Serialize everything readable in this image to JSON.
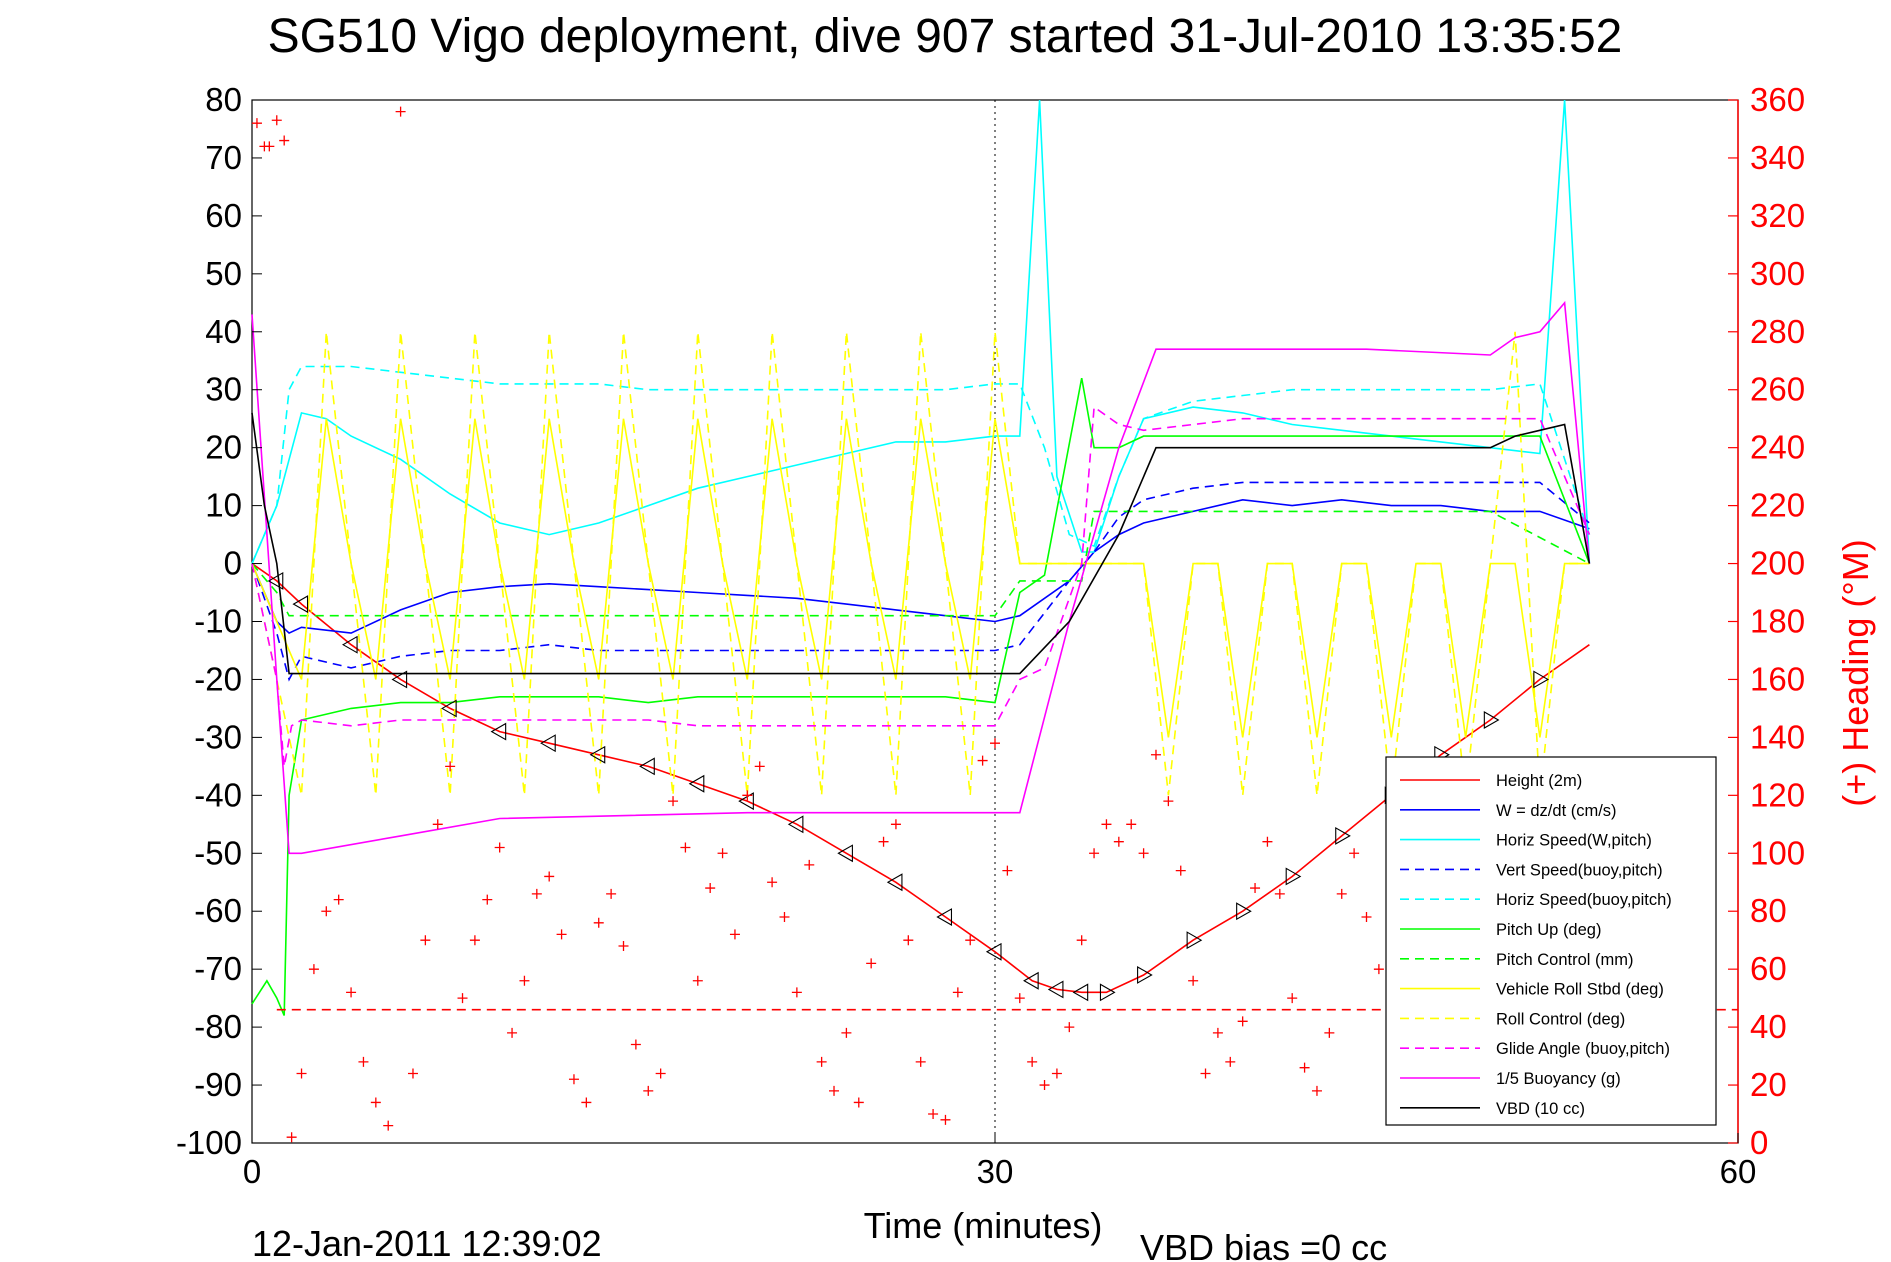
{
  "chart_data": {
    "type": "line",
    "title": "SG510 Vigo deployment, dive 907 started 31-Jul-2010 13:35:52",
    "xlabel": "Time (minutes)",
    "ylabel_right": "(+) Heading (°M)",
    "xlim": [
      0,
      60
    ],
    "ylim": [
      -100,
      80
    ],
    "ylim_right": [
      0,
      360
    ],
    "xticks": [
      "0",
      "30",
      "60"
    ],
    "yticks": [
      "80",
      "70",
      "60",
      "50",
      "40",
      "30",
      "20",
      "10",
      "0",
      "-10",
      "-20",
      "-30",
      "-40",
      "-50",
      "-60",
      "-70",
      "-80",
      "-90",
      "-100"
    ],
    "yticks_right": [
      "360",
      "340",
      "320",
      "300",
      "280",
      "260",
      "240",
      "220",
      "200",
      "180",
      "160",
      "140",
      "120",
      "100",
      "80",
      "60",
      "40",
      "20",
      "0"
    ],
    "grid": "x only",
    "legend_position": "bottom-right",
    "footer_left": "12-Jan-2011 12:39:02",
    "footer_right": "VBD bias =0 cc",
    "series": [
      {
        "name": "Height (2m)",
        "color": "#ff0000",
        "style": "solid",
        "x": [
          0,
          1,
          2,
          4,
          6,
          8,
          10,
          12,
          14,
          16,
          18,
          20,
          22,
          24,
          26,
          28,
          30,
          31.5,
          32.5,
          33.5,
          34.5,
          36,
          38,
          40,
          42,
          44,
          46,
          48,
          50,
          52,
          54
        ],
        "y": [
          0,
          -3,
          -7,
          -14,
          -20,
          -25,
          -29,
          -31,
          -33,
          -35,
          -38,
          -41,
          -45,
          -50,
          -55,
          -61,
          -67,
          -72,
          -73.5,
          -74,
          -74,
          -71,
          -65,
          -60,
          -54,
          -47,
          -40,
          -33,
          -27,
          -20,
          -14
        ]
      },
      {
        "name": "W = dz/dt (cm/s)",
        "color": "#0000ff",
        "style": "solid",
        "x": [
          0,
          1,
          1.5,
          2,
          4,
          6,
          8,
          10,
          12,
          14,
          16,
          18,
          20,
          22,
          24,
          26,
          28,
          30,
          31,
          33,
          34,
          35,
          36,
          38,
          40,
          42,
          44,
          46,
          48,
          50,
          52,
          54
        ],
        "y": [
          0,
          -10,
          -12,
          -11,
          -12,
          -8,
          -5,
          -4,
          -3.5,
          -4,
          -4.5,
          -5,
          -5.5,
          -6,
          -7,
          -8,
          -9,
          -10,
          -9,
          -3,
          2,
          5,
          7,
          9,
          11,
          10,
          11,
          10,
          10,
          9,
          9,
          6
        ]
      },
      {
        "name": "Horiz Speed(W,pitch)",
        "color": "#00ffff",
        "style": "solid",
        "x": [
          0,
          1,
          2,
          3,
          4,
          6,
          8,
          10,
          12,
          14,
          16,
          18,
          20,
          22,
          24,
          26,
          28,
          30,
          31,
          31.8,
          32.5,
          33.5,
          34,
          35,
          36,
          38,
          40,
          42,
          44,
          46,
          48,
          50,
          52,
          53,
          54
        ],
        "y": [
          0,
          10,
          26,
          25,
          22,
          18,
          12,
          7,
          5,
          7,
          10,
          13,
          15,
          17,
          19,
          21,
          21,
          22,
          22,
          80,
          15,
          2,
          2,
          15,
          25,
          27,
          26,
          24,
          23,
          22,
          21,
          20,
          19,
          80,
          0
        ]
      },
      {
        "name": "Vert Speed(buoy,pitch)",
        "color": "#0000ff",
        "style": "dashed",
        "x": [
          0,
          1,
          1.5,
          2,
          4,
          6,
          8,
          10,
          12,
          14,
          16,
          18,
          20,
          22,
          24,
          26,
          28,
          30,
          31,
          33,
          34,
          35,
          36,
          38,
          40,
          42,
          44,
          46,
          48,
          50,
          52,
          54
        ],
        "y": [
          0,
          -12,
          -20,
          -16,
          -18,
          -16,
          -15,
          -15,
          -14,
          -15,
          -15,
          -15,
          -15,
          -15,
          -15,
          -15,
          -15,
          -15,
          -14,
          -3,
          2,
          8,
          11,
          13,
          14,
          14,
          14,
          14,
          14,
          14,
          14,
          7
        ]
      },
      {
        "name": "Horiz Speed(buoy,pitch)",
        "color": "#00ffff",
        "style": "dashed",
        "x": [
          0,
          1,
          1.5,
          2,
          4,
          6,
          8,
          10,
          12,
          14,
          16,
          18,
          20,
          22,
          24,
          26,
          28,
          30,
          31,
          32,
          33,
          34,
          35,
          36,
          38,
          40,
          42,
          44,
          46,
          48,
          50,
          52,
          54
        ],
        "y": [
          0,
          10,
          30,
          34,
          34,
          33,
          32,
          31,
          31,
          31,
          30,
          30,
          30,
          30,
          30,
          30,
          30,
          31,
          31,
          20,
          5,
          3,
          15,
          25,
          28,
          29,
          30,
          30,
          30,
          30,
          30,
          31,
          5
        ]
      },
      {
        "name": "Pitch Up (deg)",
        "color": "#00ff00",
        "style": "solid",
        "x": [
          0,
          0.6,
          1.0,
          1.3,
          1.5,
          2,
          4,
          6,
          8,
          10,
          12,
          14,
          16,
          18,
          20,
          22,
          24,
          26,
          28,
          30,
          31,
          32,
          33.5,
          34,
          35,
          36,
          38,
          40,
          42,
          44,
          46,
          48,
          50,
          52,
          54
        ],
        "y": [
          -76,
          -72,
          -75,
          -78,
          -40,
          -27,
          -25,
          -24,
          -24,
          -23,
          -23,
          -23,
          -24,
          -23,
          -23,
          -23,
          -23,
          -23,
          -23,
          -24,
          -5,
          -2,
          32,
          20,
          20,
          22,
          22,
          22,
          22,
          22,
          22,
          22,
          22,
          22,
          0
        ]
      },
      {
        "name": "Pitch Control (mm)",
        "color": "#00ff00",
        "style": "dashed",
        "x": [
          0,
          1,
          1.5,
          2,
          4,
          10,
          20,
          30,
          31,
          32,
          33.5,
          34,
          36,
          40,
          50,
          54
        ],
        "y": [
          0,
          -5,
          -9,
          -9,
          -9,
          -9,
          -9,
          -9,
          -3,
          -3,
          -3,
          9,
          9,
          9,
          9,
          0
        ]
      },
      {
        "name": "Vehicle Roll Stbd (deg)",
        "color": "#ffff00",
        "style": "solid",
        "x": [
          0,
          2,
          3,
          4,
          5,
          6,
          7,
          8,
          9,
          10,
          11,
          12,
          13,
          14,
          15,
          16,
          17,
          18,
          19,
          20,
          21,
          22,
          23,
          24,
          25,
          26,
          27,
          28,
          29,
          30,
          31,
          32,
          33,
          34,
          35,
          36,
          37,
          38,
          39,
          40,
          41,
          42,
          43,
          44,
          45,
          46,
          47,
          48,
          49,
          50,
          51,
          52,
          53,
          54
        ],
        "y": [
          0,
          -20,
          25,
          0,
          -20,
          25,
          0,
          -20,
          25,
          0,
          -20,
          25,
          0,
          -20,
          25,
          0,
          -20,
          25,
          0,
          -20,
          25,
          0,
          -20,
          25,
          0,
          -20,
          25,
          0,
          -20,
          25,
          0,
          0,
          0,
          0,
          0,
          0,
          -30,
          0,
          0,
          -30,
          0,
          0,
          -30,
          0,
          0,
          -30,
          0,
          0,
          -30,
          0,
          0,
          -30,
          0,
          0
        ]
      },
      {
        "name": "Roll Control (deg)",
        "color": "#ffff00",
        "style": "dashed",
        "x": [
          0,
          2,
          3,
          4,
          5,
          6,
          7,
          8,
          9,
          10,
          11,
          12,
          13,
          14,
          15,
          16,
          17,
          18,
          19,
          20,
          21,
          22,
          23,
          24,
          25,
          26,
          27,
          28,
          29,
          30,
          31,
          32,
          33,
          34,
          35,
          36,
          37,
          38,
          39,
          40,
          41,
          42,
          43,
          44,
          45,
          46,
          47,
          48,
          49,
          50,
          51,
          52,
          53,
          54
        ],
        "y": [
          0,
          -40,
          40,
          0,
          -40,
          40,
          0,
          -40,
          40,
          0,
          -40,
          40,
          0,
          -40,
          40,
          0,
          -40,
          40,
          0,
          -40,
          40,
          0,
          -40,
          40,
          0,
          -40,
          40,
          0,
          -40,
          40,
          0,
          0,
          0,
          0,
          0,
          0,
          -40,
          0,
          0,
          -40,
          0,
          0,
          -40,
          0,
          0,
          -40,
          0,
          0,
          -40,
          0,
          40,
          -40,
          0,
          0
        ]
      },
      {
        "name": "Glide Angle (buoy,pitch)",
        "color": "#ff00ff",
        "style": "dashed",
        "x": [
          0,
          1,
          1.3,
          1.6,
          2,
          4,
          6,
          8,
          10,
          12,
          14,
          16,
          18,
          20,
          22,
          24,
          26,
          28,
          30,
          31,
          32,
          33.5,
          34,
          35,
          36,
          38,
          40,
          42,
          44,
          46,
          48,
          50,
          52,
          54
        ],
        "y": [
          0,
          -20,
          -35,
          -28,
          -27,
          -28,
          -27,
          -27,
          -27,
          -27,
          -27,
          -27,
          -28,
          -28,
          -28,
          -28,
          -28,
          -28,
          -28,
          -20,
          -18,
          0,
          27,
          24,
          23,
          24,
          25,
          25,
          25,
          25,
          25,
          25,
          25,
          5
        ]
      },
      {
        "name": "1/5 Buoyancy (g)",
        "color": "#ff00ff",
        "style": "solid",
        "x": [
          0,
          1,
          1.5,
          2,
          6,
          10,
          20,
          30,
          31,
          33,
          35,
          36.5,
          40,
          45,
          50,
          51,
          52,
          53,
          54
        ],
        "y": [
          43,
          -20,
          -50,
          -50,
          -47,
          -44,
          -43,
          -43,
          -43,
          -10,
          20,
          37,
          37,
          37,
          36,
          39,
          40,
          45,
          0
        ]
      },
      {
        "name": "VBD (10 cc)",
        "color": "#000000",
        "style": "solid",
        "x": [
          0,
          0.5,
          1,
          1.5,
          2,
          10,
          20,
          30,
          31,
          33,
          35,
          36.5,
          40,
          45,
          50,
          51,
          52,
          53,
          54
        ],
        "y": [
          26,
          10,
          0,
          -19,
          -19,
          -19,
          -19,
          -19,
          -19,
          -10,
          5,
          20,
          20,
          20,
          20,
          22,
          23,
          24,
          0
        ]
      },
      {
        "name": "Height reference (dashed)",
        "color": "#ff0000",
        "style": "dashed",
        "x": [
          1,
          60
        ],
        "y": [
          -77,
          -77
        ]
      }
    ],
    "heading": {
      "name": "(+) Heading (°M)",
      "color": "#ff0000",
      "marker": "+",
      "x": [
        0.2,
        0.5,
        0.7,
        1.0,
        1.3,
        1.6,
        2.0,
        2.5,
        3.0,
        3.5,
        4.0,
        4.5,
        5.0,
        5.5,
        6.0,
        6.5,
        7.0,
        7.5,
        8.0,
        8.5,
        9.0,
        9.5,
        10.0,
        10.5,
        11.0,
        11.5,
        12.0,
        12.5,
        13.0,
        13.5,
        14.0,
        14.5,
        15.0,
        15.5,
        16.0,
        16.5,
        17.0,
        17.5,
        18.0,
        18.5,
        19.0,
        19.5,
        20.0,
        20.5,
        21.0,
        21.5,
        22.0,
        22.5,
        23.0,
        23.5,
        24.0,
        24.5,
        25.0,
        25.5,
        26.0,
        26.5,
        27.0,
        27.5,
        28.0,
        28.5,
        29.0,
        29.5,
        30.0,
        30.5,
        31.0,
        31.5,
        32.0,
        32.5,
        33.0,
        33.5,
        34.0,
        34.5,
        35.0,
        35.5,
        36.0,
        36.5,
        37.0,
        37.5,
        38.0,
        38.5,
        39.0,
        39.5,
        40.0,
        40.5,
        41.0,
        41.5,
        42.0,
        42.5,
        43.0,
        43.5,
        44.0,
        44.5,
        45.0,
        45.5,
        46.0,
        46.5,
        47.0,
        47.5,
        48.0,
        48.5,
        49.0,
        49.5,
        50.0,
        50.5,
        51.0,
        51.5,
        52.0,
        52.5,
        53.0,
        53.5,
        54.0,
        54.3
      ],
      "y": [
        352,
        344,
        344,
        353,
        346,
        2,
        24,
        60,
        80,
        84,
        52,
        28,
        14,
        6,
        356,
        24,
        70,
        110,
        130,
        50,
        70,
        84,
        102,
        38,
        56,
        86,
        92,
        72,
        22,
        14,
        76,
        86,
        68,
        34,
        18,
        24,
        118,
        102,
        56,
        88,
        100,
        72,
        120,
        130,
        90,
        78,
        52,
        96,
        28,
        18,
        38,
        14,
        62,
        104,
        110,
        70,
        28,
        10,
        8,
        52,
        70,
        132,
        138,
        94,
        50,
        28,
        20,
        24,
        40,
        70,
        100,
        110,
        104,
        110,
        100,
        134,
        118,
        94,
        56,
        24,
        38,
        28,
        42,
        88,
        104,
        86,
        50,
        26,
        18,
        38,
        86,
        100,
        78,
        60,
        66,
        50,
        30,
        18,
        40,
        72,
        84,
        62,
        24,
        16,
        22,
        72,
        118,
        102,
        40,
        60,
        40,
        28
      ]
    }
  }
}
